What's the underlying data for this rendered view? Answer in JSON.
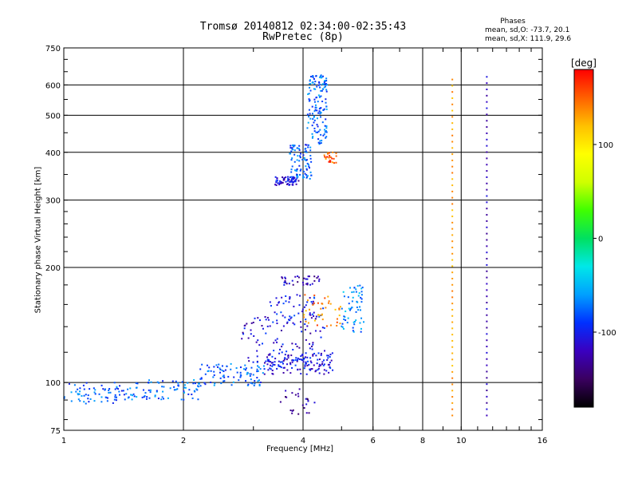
{
  "chart_data": {
    "type": "scatter",
    "title": "Tromsø 20140812 02:34:00-02:35:43",
    "subtitle": "RwPretec (8p)",
    "xlabel": "Frequency [MHz]",
    "ylabel": "Stationary phase Virtual Height [km]",
    "x_scale": "log",
    "y_scale": "log",
    "xlim": [
      1,
      16
    ],
    "ylim": [
      75,
      750
    ],
    "x_ticks": [
      1,
      2,
      4,
      6,
      8,
      10,
      16
    ],
    "y_ticks": [
      75,
      100,
      200,
      300,
      400,
      500,
      600,
      750
    ],
    "grid": true,
    "phases_header": "Phases",
    "phases_stats": [
      "mean, sd,O: -73.7, 20.1",
      "mean, sd,X: 111.9, 29.6"
    ],
    "colorbar": {
      "label": "[deg]",
      "range": [
        -180,
        180
      ],
      "ticks": [
        100,
        0,
        -100
      ],
      "colors": [
        "#000000",
        "#3a0060",
        "#3a00c0",
        "#0030ff",
        "#00a0ff",
        "#00e8e8",
        "#00e060",
        "#40ff00",
        "#d0ff00",
        "#ffff00",
        "#ffc000",
        "#ff6000",
        "#ff0000"
      ]
    },
    "clusters": [
      {
        "x": [
          1.0,
          1.45
        ],
        "y": [
          88,
          100
        ],
        "phase": -80,
        "count": 70
      },
      {
        "x": [
          1.45,
          2.2
        ],
        "y": [
          90,
          102
        ],
        "phase": -75,
        "count": 80
      },
      {
        "x": [
          2.2,
          3.2
        ],
        "y": [
          98,
          112
        ],
        "phase": -80,
        "count": 90
      },
      {
        "x": [
          3.2,
          4.8
        ],
        "y": [
          105,
          120
        ],
        "phase": -105,
        "count": 130
      },
      {
        "x": [
          2.8,
          4.6
        ],
        "y": [
          112,
          150
        ],
        "phase": -110,
        "count": 90
      },
      {
        "x": [
          3.3,
          4.5
        ],
        "y": [
          140,
          170
        ],
        "phase": -100,
        "count": 60
      },
      {
        "x": [
          3.5,
          4.4
        ],
        "y": [
          180,
          190
        ],
        "phase": -120,
        "count": 35
      },
      {
        "x": [
          4.0,
          5.0
        ],
        "y": [
          140,
          170
        ],
        "phase": 140,
        "count": 40
      },
      {
        "x": [
          5.0,
          5.7
        ],
        "y": [
          135,
          180
        ],
        "phase": -65,
        "count": 60
      },
      {
        "x": [
          3.4,
          3.9
        ],
        "y": [
          328,
          345
        ],
        "phase": -110,
        "count": 60
      },
      {
        "x": [
          3.7,
          4.2
        ],
        "y": [
          340,
          420
        ],
        "phase": -80,
        "count": 90
      },
      {
        "x": [
          4.1,
          4.6
        ],
        "y": [
          420,
          640
        ],
        "phase": -75,
        "count": 140
      },
      {
        "x": [
          4.5,
          4.9
        ],
        "y": [
          375,
          400
        ],
        "phase": 150,
        "count": 25
      },
      {
        "x": [
          3.5,
          4.3
        ],
        "y": [
          82,
          97
        ],
        "phase": -130,
        "count": 25
      }
    ],
    "vertical_traces": [
      {
        "x": 9.5,
        "y": [
          82,
          620
        ],
        "phase": 130
      },
      {
        "x": 11.6,
        "y": [
          82,
          630
        ],
        "phase": -120
      }
    ]
  }
}
